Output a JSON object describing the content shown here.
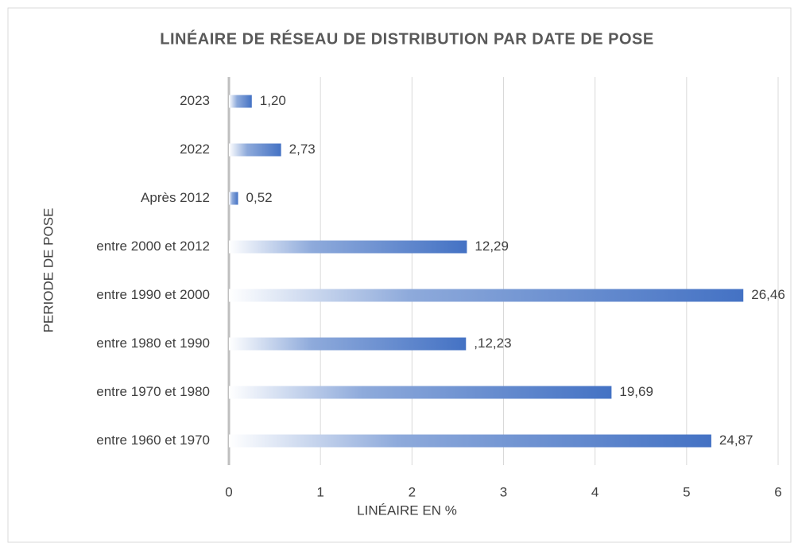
{
  "chart_data": {
    "type": "hbar",
    "title": "LINÉAIRE DE RÉSEAU DE DISTRIBUTION PAR DATE DE POSE",
    "x_label": "LINÉAIRE EN %",
    "y_label": "PERIODE DE POSE",
    "categories": [
      "2023",
      "2022",
      "Après 2012",
      "entre 2000 et 2012",
      "entre 1990 et 2000",
      "entre 1980 et 1990",
      "entre 1970 et 1980",
      "entre 1960 et 1970"
    ],
    "values": [
      0.25,
      0.57,
      0.1,
      2.6,
      5.62,
      2.59,
      4.18,
      5.27
    ],
    "annotations": [
      "1,20",
      "2,73",
      "0,52",
      "12,29",
      "26,46",
      ",12,23",
      "19,69",
      "24,87"
    ],
    "color": "#4472c4",
    "xlim": [
      0,
      6
    ],
    "xticks": [
      0,
      1,
      2,
      3,
      4,
      5,
      6
    ],
    "grid": true
  }
}
